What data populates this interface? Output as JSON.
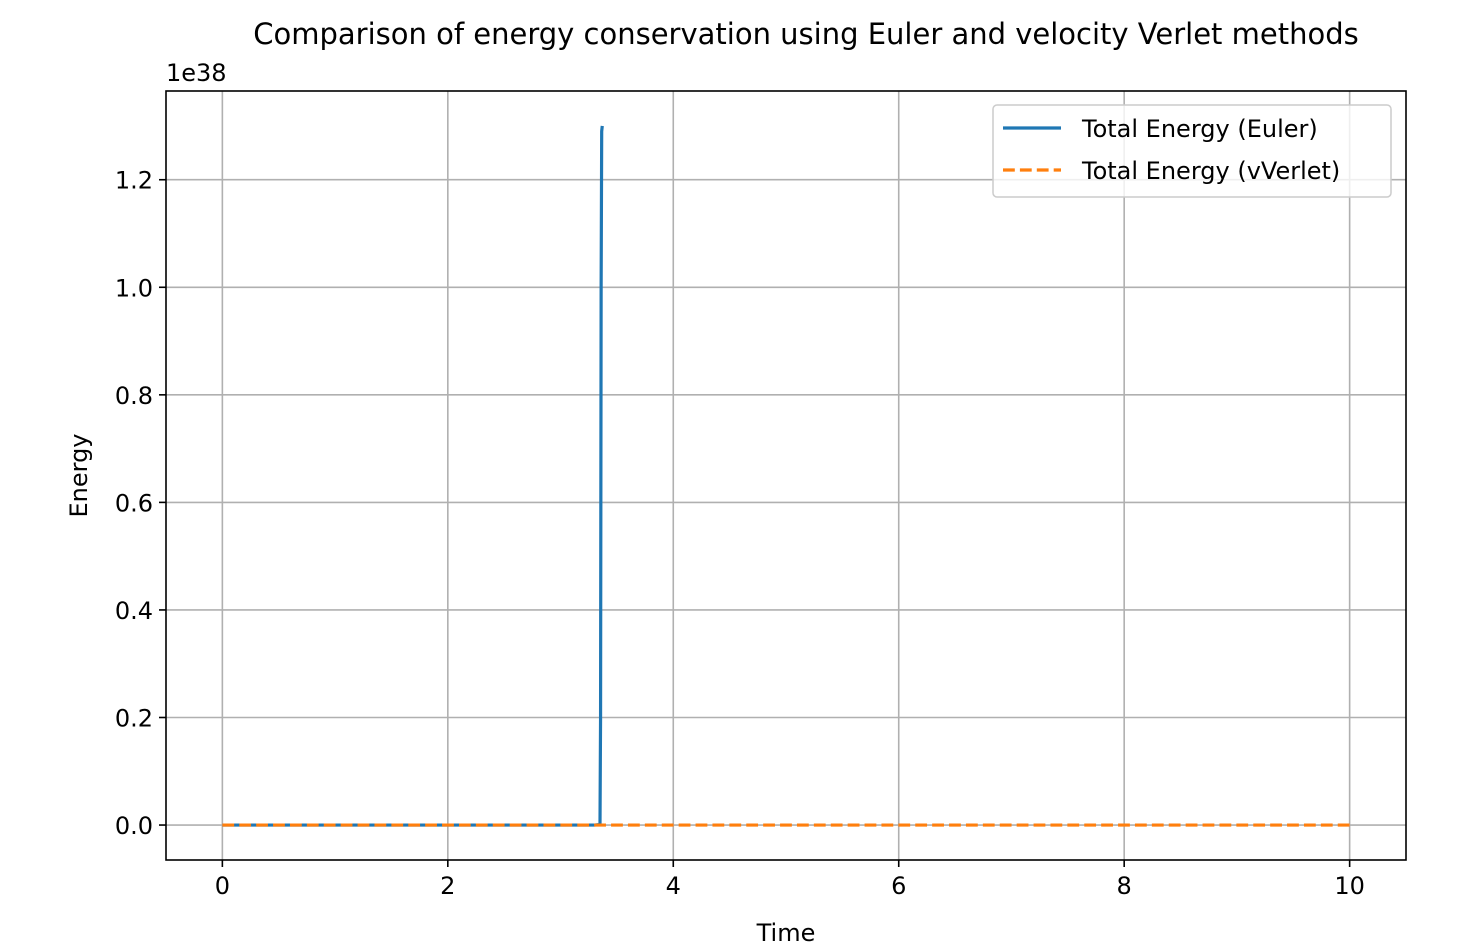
{
  "chart_data": {
    "type": "line",
    "title": "Comparison of energy conservation using Euler and velocity Verlet methods",
    "xlabel": "Time",
    "ylabel": "Energy",
    "y_offset_label": "1e38",
    "y_scale_factor": 1e+38,
    "xlim": [
      -0.5,
      10.5
    ],
    "ylim": [
      -0.065,
      1.365
    ],
    "xticks": [
      0,
      2,
      4,
      6,
      8,
      10
    ],
    "xtick_labels": [
      "0",
      "2",
      "4",
      "6",
      "8",
      "10"
    ],
    "yticks": [
      0.0,
      0.2,
      0.4,
      0.6,
      0.8,
      1.0,
      1.2
    ],
    "ytick_labels": [
      "0.0",
      "0.2",
      "0.4",
      "0.6",
      "0.8",
      "1.0",
      "1.2"
    ],
    "grid": true,
    "legend_position": "top-right",
    "series": [
      {
        "name": "Total Energy (Euler)",
        "color": "#1f77b4",
        "style": "solid",
        "x": [
          0,
          1,
          2,
          3,
          3.3,
          3.35,
          3.355,
          3.36,
          3.365,
          3.37
        ],
        "y": [
          0,
          0,
          0,
          0,
          0,
          0.001,
          0.2,
          1.0,
          1.29,
          1.3
        ]
      },
      {
        "name": "Total Energy (vVerlet)",
        "color": "#ff7f0e",
        "style": "dashed",
        "x": [
          0,
          2,
          4,
          6,
          8,
          10
        ],
        "y": [
          0,
          0,
          0,
          0,
          0,
          0
        ]
      }
    ]
  }
}
